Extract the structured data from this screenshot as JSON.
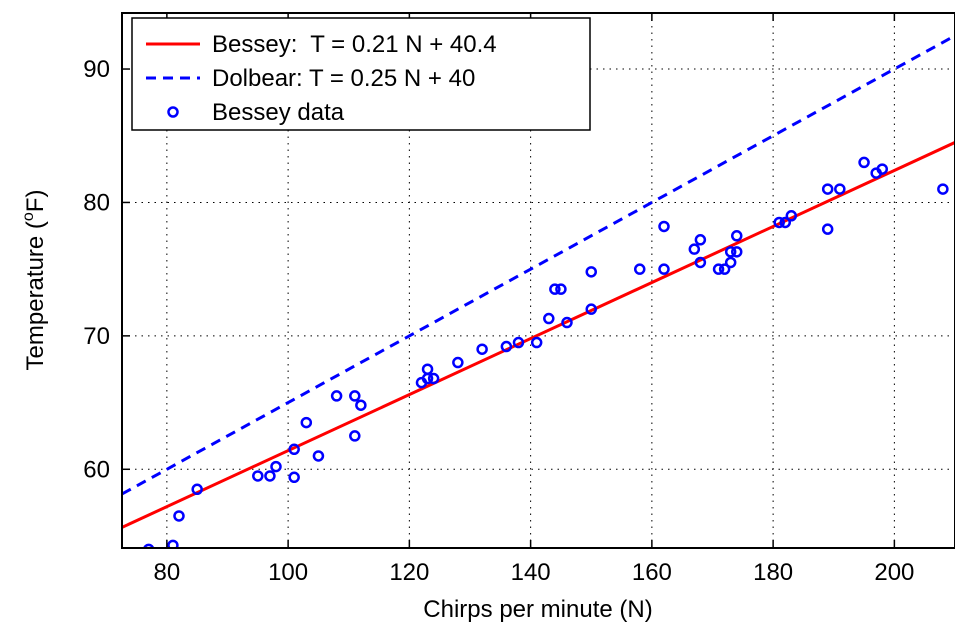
{
  "chart_data": {
    "type": "scatter",
    "title": "",
    "xlabel": "Chirps per minute (N)",
    "ylabel_main": "Temperature (",
    "ylabel_sup": "o",
    "ylabel_end": "F)",
    "xlim": [
      72.6,
      210
    ],
    "ylim": [
      54.1,
      94.2
    ],
    "xticks": [
      80,
      100,
      120,
      140,
      160,
      180,
      200
    ],
    "yticks": [
      60,
      70,
      80,
      90
    ],
    "grid": true,
    "legend_position": "top-left",
    "series": [
      {
        "name": "Bessey:  T = 0.21 N + 40.4",
        "kind": "line",
        "style": "solid",
        "color": "#ff0000",
        "slope": 0.21,
        "intercept": 40.4
      },
      {
        "name": "Dolbear: T = 0.25 N + 40",
        "kind": "line",
        "style": "dashed",
        "color": "#0000ff",
        "slope": 0.25,
        "intercept": 40
      },
      {
        "name": "Bessey data",
        "kind": "markers",
        "color": "#0000ff",
        "points": [
          [
            77,
            54.0
          ],
          [
            81,
            54.3
          ],
          [
            82,
            56.5
          ],
          [
            85,
            58.5
          ],
          [
            95,
            59.5
          ],
          [
            97,
            59.5
          ],
          [
            98,
            60.2
          ],
          [
            101,
            59.4
          ],
          [
            101,
            61.5
          ],
          [
            103,
            63.5
          ],
          [
            105,
            61.0
          ],
          [
            108,
            65.5
          ],
          [
            111,
            65.5
          ],
          [
            111,
            62.5
          ],
          [
            112,
            64.8
          ],
          [
            122,
            66.5
          ],
          [
            123,
            67.5
          ],
          [
            123,
            66.8
          ],
          [
            124,
            66.8
          ],
          [
            128,
            68.0
          ],
          [
            132,
            69.0
          ],
          [
            136,
            69.2
          ],
          [
            138,
            69.5
          ],
          [
            141,
            69.5
          ],
          [
            143,
            71.3
          ],
          [
            144,
            73.5
          ],
          [
            145,
            73.5
          ],
          [
            146,
            71.0
          ],
          [
            150,
            74.8
          ],
          [
            150,
            72.0
          ],
          [
            158,
            75.0
          ],
          [
            162,
            75.0
          ],
          [
            162,
            78.2
          ],
          [
            167,
            76.5
          ],
          [
            168,
            75.5
          ],
          [
            168,
            77.2
          ],
          [
            171,
            75.0
          ],
          [
            172,
            75.0
          ],
          [
            173,
            76.3
          ],
          [
            173,
            75.5
          ],
          [
            174,
            76.3
          ],
          [
            174,
            77.5
          ],
          [
            181,
            78.5
          ],
          [
            182,
            78.5
          ],
          [
            183,
            79.0
          ],
          [
            189,
            78.0
          ],
          [
            189,
            81.0
          ],
          [
            191,
            81.0
          ],
          [
            195,
            83.0
          ],
          [
            197,
            82.2
          ],
          [
            198,
            82.5
          ],
          [
            208,
            81.0
          ]
        ]
      }
    ]
  }
}
